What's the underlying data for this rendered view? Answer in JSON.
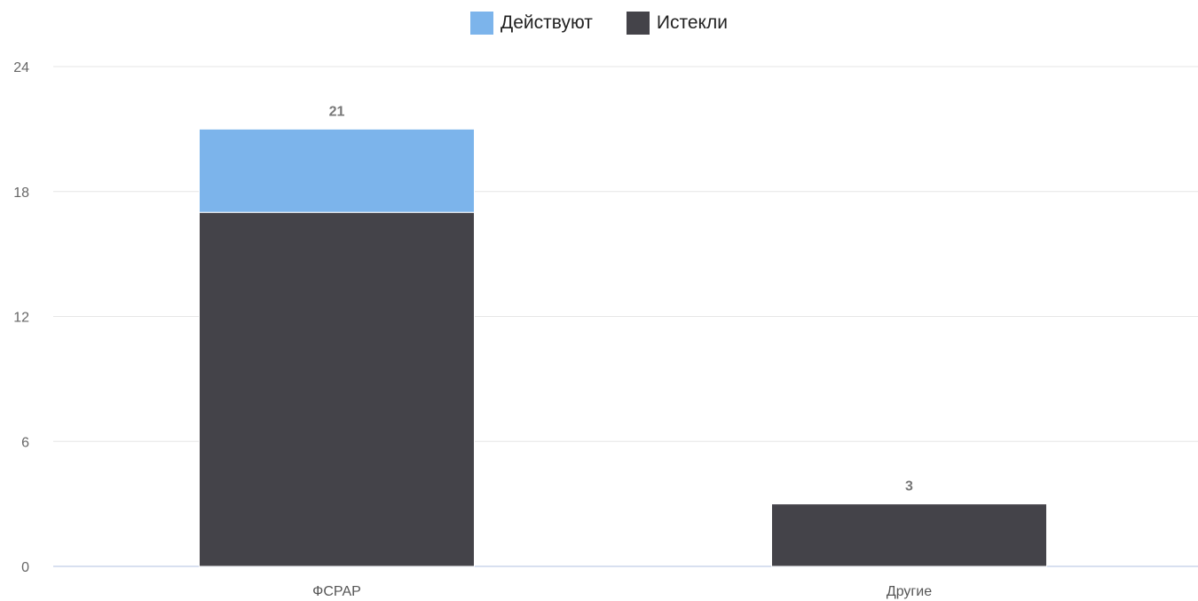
{
  "chart_data": {
    "type": "bar",
    "stacked": true,
    "categories": [
      "ФСРАР",
      "Другие"
    ],
    "series": [
      {
        "name": "Истекли",
        "values": [
          17,
          3
        ],
        "color": "#444349"
      },
      {
        "name": "Действуют",
        "values": [
          4,
          0
        ],
        "color": "#7cb4eb"
      }
    ],
    "totals": [
      21,
      3
    ],
    "ylim": [
      0,
      24
    ],
    "yticks": [
      0,
      6,
      12,
      18,
      24
    ],
    "grid": true,
    "legend_position": "top-center"
  },
  "legend": {
    "items": [
      {
        "label": "Действуют",
        "color": "#7cb4eb"
      },
      {
        "label": "Истекли",
        "color": "#444349"
      }
    ]
  }
}
